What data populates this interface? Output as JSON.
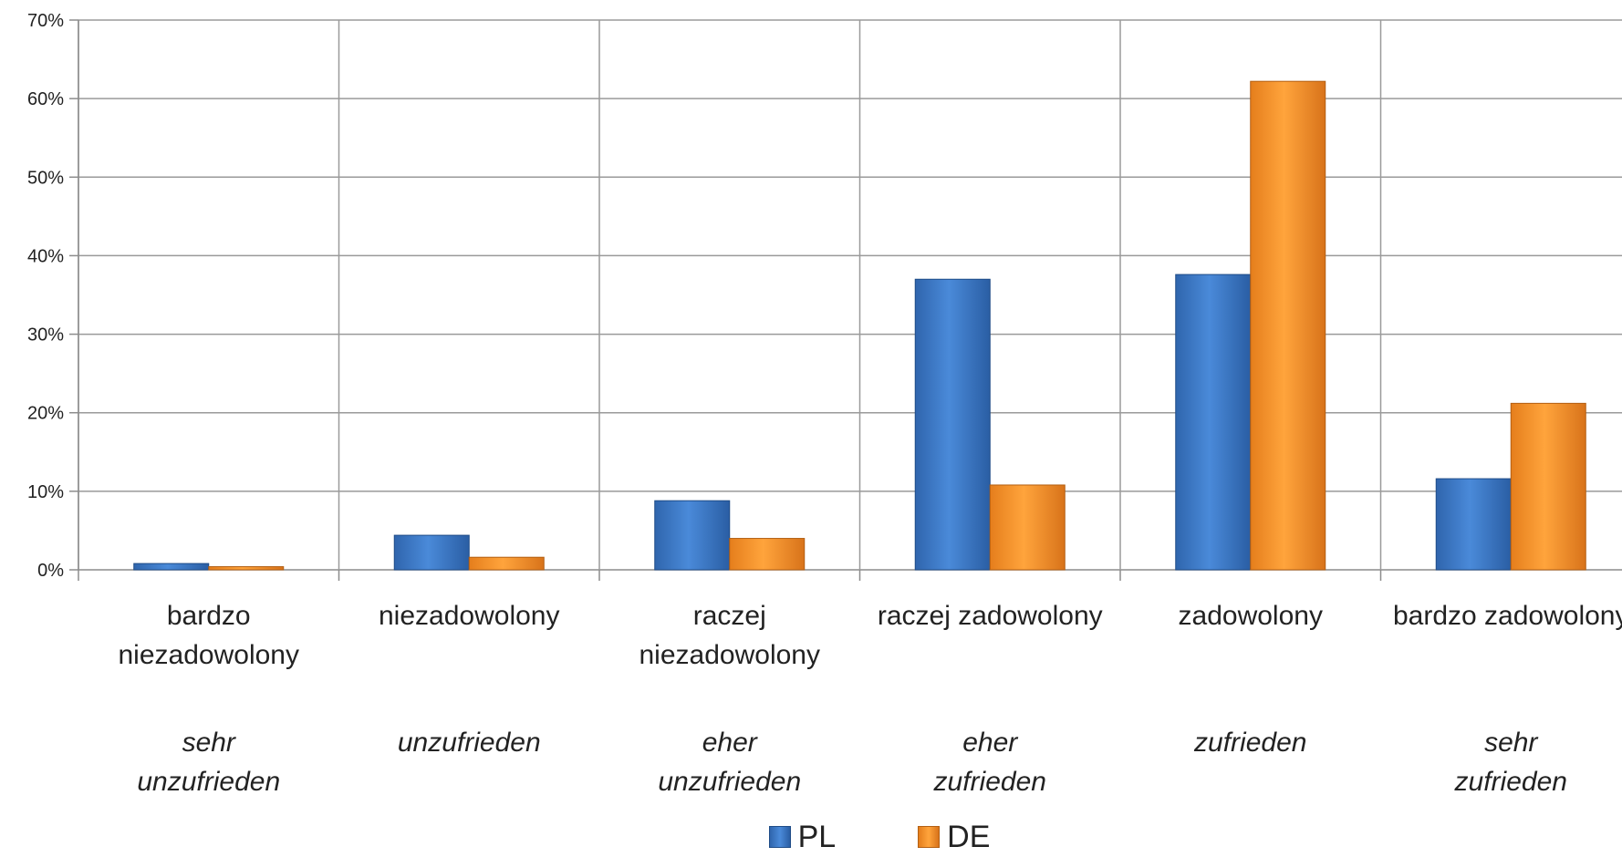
{
  "chart_data": {
    "type": "bar",
    "categories_pl": [
      "bardzo niezadowolony",
      "niezadowolony",
      "raczej niezadowolony",
      "raczej zadowolony",
      "zadowolony",
      "bardzo zadowolony"
    ],
    "categories_de": [
      "sehr unzufrieden",
      "unzufrieden",
      "eher unzufrieden",
      "eher zufrieden",
      "zufrieden",
      "sehr zufrieden"
    ],
    "series": [
      {
        "name": "PL",
        "color": "#3f79c8",
        "values": [
          0.8,
          4.4,
          8.8,
          37.0,
          37.6,
          11.6
        ]
      },
      {
        "name": "DE",
        "color": "#f7922a",
        "values": [
          0.4,
          1.6,
          4.0,
          10.8,
          62.2,
          21.2
        ]
      }
    ],
    "y_ticks": [
      "0%",
      "10%",
      "20%",
      "30%",
      "40%",
      "50%",
      "60%",
      "70%"
    ],
    "ylim": [
      0,
      70
    ],
    "grid": true,
    "legend_position": "bottom"
  }
}
